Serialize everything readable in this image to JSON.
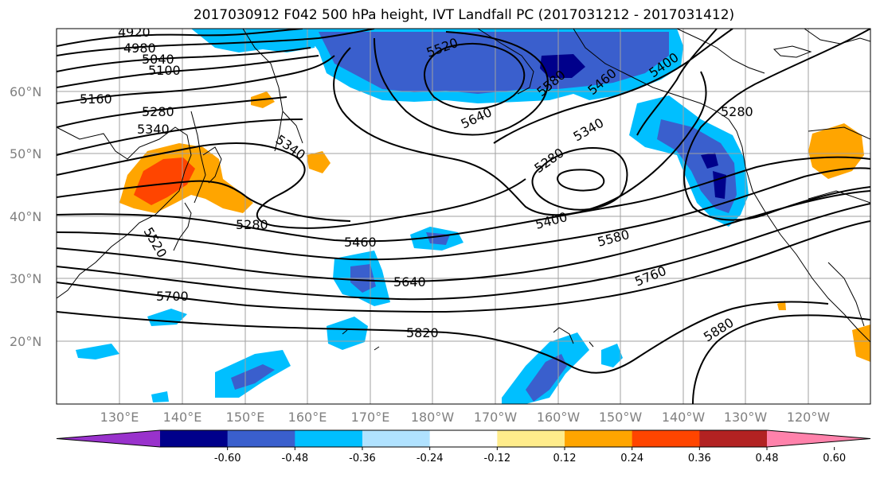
{
  "title": "2017030912 F042 500 hPa height, IVT Landfall PC (2017031212 - 2017031412)",
  "map": {
    "lat_labels": [
      "60°N",
      "50°N",
      "40°N",
      "30°N",
      "20°N"
    ],
    "lon_labels": [
      "130°E",
      "140°E",
      "150°E",
      "160°E",
      "170°E",
      "180°W",
      "170°W",
      "160°W",
      "150°W",
      "140°W",
      "130°W",
      "120°W"
    ],
    "gridline_color": "#a0a0a0",
    "contour_labels": [
      "4920",
      "4980",
      "5040",
      "5100",
      "5160",
      "5280",
      "5340",
      "5340",
      "5280",
      "5520",
      "5580",
      "5640",
      "5460",
      "5400",
      "5280",
      "5340",
      "5280",
      "5400",
      "5460",
      "5580",
      "5640",
      "5700",
      "5760",
      "5820",
      "5880",
      "5520"
    ]
  },
  "colorbar": {
    "tick_labels": [
      "-0.60",
      "-0.48",
      "-0.36",
      "-0.24",
      "-0.12",
      "0.12",
      "0.24",
      "0.36",
      "0.48",
      "0.60"
    ],
    "colors": [
      "#9932cc",
      "#00008b",
      "#3a5fcd",
      "#00bfff",
      "#b0e2ff",
      "#ffffff",
      "#ffec8b",
      "#ffa500",
      "#ff4500",
      "#b22222",
      "#ff82ab"
    ]
  }
}
